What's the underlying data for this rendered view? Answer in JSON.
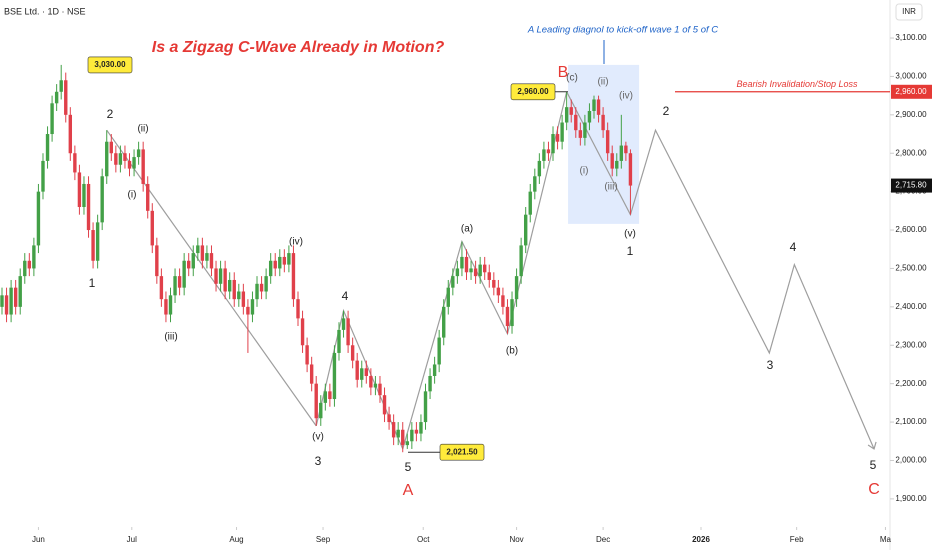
{
  "chart_data": {
    "type": "candlestick",
    "header": "BSE Ltd. · 1D · NSE",
    "currency": "INR",
    "title": "Is a Zigzag C-Wave Already in Motion?",
    "note": "A Leading diagnol to kick-off wave 1 of 5 of C",
    "up_color": "#43a047",
    "down_color": "#e0404a",
    "x": [
      0,
      1,
      2,
      3,
      4,
      5,
      6,
      7,
      8,
      9,
      10,
      11,
      12,
      13,
      14,
      15,
      16,
      17,
      18,
      19,
      20,
      21,
      22,
      23,
      24,
      25,
      26,
      27,
      28,
      29,
      30,
      31,
      32,
      33,
      34,
      35,
      36,
      37,
      38,
      39,
      40,
      41,
      42,
      43,
      44,
      45,
      46,
      47,
      48,
      49,
      50,
      51,
      52,
      53,
      54,
      55,
      56,
      57,
      58,
      59,
      60,
      61,
      62,
      63,
      64,
      65,
      66,
      67,
      68,
      69,
      70,
      71,
      72,
      73,
      74,
      75,
      76,
      77,
      78,
      79,
      80,
      81,
      82,
      83,
      84,
      85,
      86,
      87,
      88,
      89,
      90,
      91,
      92,
      93,
      94,
      95,
      96,
      97,
      98,
      99,
      100,
      101,
      102,
      103,
      104,
      105,
      106,
      107,
      108,
      109,
      110,
      111,
      112,
      113,
      114,
      115,
      116,
      117,
      118,
      119,
      120,
      121,
      122,
      123,
      124,
      125,
      126,
      127,
      128,
      129,
      130,
      131,
      132,
      133,
      134,
      135,
      136,
      137,
      138
    ],
    "open": [
      2400,
      2430,
      2380,
      2450,
      2400,
      2480,
      2520,
      2500,
      2560,
      2700,
      2780,
      2850,
      2930,
      2960,
      2990,
      2900,
      2800,
      2750,
      2660,
      2720,
      2600,
      2520,
      2620,
      2740,
      2830,
      2800,
      2770,
      2800,
      2780,
      2760,
      2790,
      2810,
      2720,
      2650,
      2560,
      2480,
      2420,
      2380,
      2430,
      2480,
      2450,
      2520,
      2500,
      2540,
      2560,
      2520,
      2540,
      2500,
      2460,
      2500,
      2440,
      2470,
      2420,
      2440,
      2400,
      2380,
      2420,
      2460,
      2440,
      2480,
      2520,
      2500,
      2530,
      2510,
      2540,
      2420,
      2370,
      2300,
      2250,
      2200,
      2110,
      2150,
      2180,
      2160,
      2280,
      2340,
      2370,
      2300,
      2260,
      2210,
      2240,
      2220,
      2190,
      2200,
      2170,
      2120,
      2100,
      2060,
      2080,
      2040,
      2050,
      2080,
      2070,
      2100,
      2180,
      2220,
      2250,
      2320,
      2400,
      2450,
      2480,
      2500,
      2530,
      2490,
      2500,
      2480,
      2510,
      2490,
      2470,
      2450,
      2430,
      2400,
      2350,
      2420,
      2480,
      2560,
      2640,
      2700,
      2740,
      2780,
      2810,
      2800,
      2850,
      2830,
      2880,
      2920,
      2900,
      2860,
      2840,
      2880,
      2910,
      2940,
      2900,
      2860,
      2800,
      2760,
      2780,
      2820,
      2800
    ],
    "high": [
      2450,
      2450,
      2470,
      2470,
      2500,
      2540,
      2540,
      2580,
      2720,
      2800,
      2870,
      2950,
      2980,
      3030,
      3010,
      2920,
      2820,
      2770,
      2740,
      2740,
      2620,
      2640,
      2760,
      2860,
      2850,
      2820,
      2820,
      2820,
      2800,
      2810,
      2830,
      2830,
      2740,
      2670,
      2580,
      2500,
      2440,
      2450,
      2500,
      2500,
      2540,
      2540,
      2560,
      2580,
      2580,
      2560,
      2560,
      2520,
      2520,
      2520,
      2490,
      2490,
      2460,
      2460,
      2420,
      2440,
      2480,
      2480,
      2500,
      2540,
      2540,
      2550,
      2550,
      2560,
      2560,
      2440,
      2390,
      2320,
      2270,
      2220,
      2170,
      2200,
      2200,
      2300,
      2360,
      2390,
      2390,
      2320,
      2280,
      2260,
      2260,
      2240,
      2220,
      2220,
      2190,
      2140,
      2120,
      2100,
      2100,
      2070,
      2100,
      2100,
      2120,
      2200,
      2240,
      2270,
      2340,
      2420,
      2470,
      2500,
      2520,
      2570,
      2550,
      2520,
      2520,
      2530,
      2530,
      2510,
      2490,
      2470,
      2450,
      2420,
      2440,
      2500,
      2580,
      2660,
      2720,
      2760,
      2800,
      2830,
      2830,
      2870,
      2870,
      2900,
      2960,
      2940,
      2920,
      2880,
      2900,
      2930,
      2950,
      2950,
      2920,
      2880,
      2820,
      2800,
      2900,
      2830,
      2810
    ],
    "low": [
      2380,
      2360,
      2360,
      2380,
      2380,
      2460,
      2480,
      2480,
      2540,
      2680,
      2760,
      2830,
      2910,
      2940,
      2880,
      2780,
      2730,
      2640,
      2640,
      2580,
      2500,
      2500,
      2600,
      2720,
      2780,
      2750,
      2750,
      2760,
      2740,
      2740,
      2770,
      2700,
      2630,
      2540,
      2460,
      2400,
      2360,
      2360,
      2410,
      2430,
      2430,
      2480,
      2480,
      2520,
      2500,
      2500,
      2480,
      2440,
      2440,
      2420,
      2420,
      2400,
      2400,
      2380,
      2280,
      2360,
      2400,
      2420,
      2420,
      2460,
      2480,
      2480,
      2490,
      2490,
      2400,
      2350,
      2280,
      2230,
      2180,
      2090,
      2090,
      2130,
      2140,
      2140,
      2260,
      2320,
      2280,
      2240,
      2190,
      2190,
      2200,
      2170,
      2170,
      2150,
      2100,
      2080,
      2040,
      2040,
      2021.5,
      2030,
      2030,
      2050,
      2050,
      2080,
      2160,
      2200,
      2230,
      2300,
      2380,
      2430,
      2460,
      2480,
      2470,
      2470,
      2460,
      2460,
      2470,
      2450,
      2430,
      2410,
      2380,
      2330,
      2330,
      2400,
      2460,
      2540,
      2620,
      2680,
      2720,
      2760,
      2780,
      2780,
      2810,
      2810,
      2860,
      2880,
      2840,
      2820,
      2820,
      2860,
      2890,
      2880,
      2840,
      2780,
      2740,
      2740,
      2760,
      2780,
      2640
    ],
    "close": [
      2430,
      2380,
      2450,
      2400,
      2480,
      2520,
      2500,
      2560,
      2700,
      2780,
      2850,
      2930,
      2960,
      2990,
      2900,
      2800,
      2750,
      2660,
      2720,
      2600,
      2520,
      2620,
      2740,
      2830,
      2800,
      2770,
      2800,
      2780,
      2760,
      2790,
      2810,
      2720,
      2650,
      2560,
      2480,
      2420,
      2380,
      2430,
      2480,
      2450,
      2520,
      2500,
      2540,
      2560,
      2520,
      2540,
      2500,
      2460,
      2500,
      2440,
      2470,
      2420,
      2440,
      2400,
      2380,
      2420,
      2460,
      2440,
      2480,
      2520,
      2500,
      2530,
      2510,
      2540,
      2420,
      2370,
      2300,
      2250,
      2200,
      2110,
      2150,
      2180,
      2160,
      2280,
      2340,
      2370,
      2300,
      2260,
      2210,
      2240,
      2220,
      2190,
      2200,
      2170,
      2120,
      2100,
      2060,
      2080,
      2040,
      2050,
      2080,
      2070,
      2100,
      2180,
      2220,
      2250,
      2320,
      2400,
      2450,
      2480,
      2500,
      2530,
      2490,
      2500,
      2480,
      2510,
      2490,
      2470,
      2450,
      2430,
      2400,
      2350,
      2420,
      2480,
      2560,
      2640,
      2700,
      2740,
      2780,
      2810,
      2800,
      2850,
      2830,
      2880,
      2920,
      2900,
      2860,
      2840,
      2880,
      2910,
      2940,
      2900,
      2860,
      2800,
      2760,
      2780,
      2820,
      2800,
      2715.8
    ],
    "xlim": [
      0,
      195
    ],
    "xticks": [
      {
        "value": 8,
        "label": "Jun"
      },
      {
        "value": 28.5,
        "label": "Jul"
      },
      {
        "value": 51.5,
        "label": "Aug"
      },
      {
        "value": 70.5,
        "label": "Sep"
      },
      {
        "value": 92.5,
        "label": "Oct"
      },
      {
        "value": 113,
        "label": "Nov"
      },
      {
        "value": 132,
        "label": "Dec"
      },
      {
        "value": 153.5,
        "label": "2026"
      },
      {
        "value": 174.5,
        "label": "Feb"
      },
      {
        "value": 194,
        "label": "Ma"
      }
    ],
    "ylim": [
      1845,
      3199
    ],
    "yticks": [
      {
        "value": 1900,
        "label": "1,900.00"
      },
      {
        "value": 2000,
        "label": "2,000.00"
      },
      {
        "value": 2100,
        "label": "2,100.00"
      },
      {
        "value": 2200,
        "label": "2,200.00"
      },
      {
        "value": 2300,
        "label": "2,300.00"
      },
      {
        "value": 2400,
        "label": "2,400.00"
      },
      {
        "value": 2500,
        "label": "2,500.00"
      },
      {
        "value": 2600,
        "label": "2,600.00"
      },
      {
        "value": 2700,
        "label": "2,700.00"
      },
      {
        "value": 2800,
        "label": "2,800.00"
      },
      {
        "value": 2900,
        "label": "2,900.00"
      },
      {
        "value": 3000,
        "label": "3,000.00"
      },
      {
        "value": 3100,
        "label": "3,100.00"
      }
    ],
    "callouts": [
      {
        "value": 3030,
        "label": "3,030.00"
      },
      {
        "value": 2960,
        "label": "2,960.00"
      },
      {
        "value": 2021.5,
        "label": "2,021.50"
      }
    ],
    "last_price": {
      "value": 2715.8,
      "label": "2,715.80"
    },
    "stop_loss": {
      "value": 2960,
      "label": "2,960.00",
      "text": "Bearish Invalidation/Stop Loss"
    },
    "highlight_box": {
      "x": [
        124.3,
        139.9
      ],
      "y": [
        2616,
        3030
      ]
    },
    "wave_lines": [
      {
        "x": [
          23,
          69
        ],
        "y": [
          2860,
          2090
        ]
      },
      {
        "x": [
          69,
          75,
          88
        ],
        "y": [
          2090,
          2390,
          2030
        ]
      },
      {
        "x": [
          88,
          101,
          111,
          124
        ],
        "y": [
          2030,
          2570,
          2330,
          2960
        ]
      },
      {
        "x": [
          124,
          138,
          143.5,
          168.5,
          174,
          191.5
        ],
        "y": [
          2960,
          2640,
          2860,
          2280,
          2510,
          2030
        ]
      }
    ],
    "wave_labels": [
      {
        "text": "1",
        "color": "#222"
      },
      {
        "text": "2",
        "color": "#222"
      },
      {
        "text": "(ii)",
        "color": "#222"
      },
      {
        "text": "(i)",
        "color": "#222"
      },
      {
        "text": "(iii)",
        "color": "#222"
      },
      {
        "text": "(iv)",
        "color": "#222"
      },
      {
        "text": "(v)",
        "color": "#222"
      },
      {
        "text": "3",
        "color": "#222"
      },
      {
        "text": "4",
        "color": "#222"
      },
      {
        "text": "5",
        "color": "#222"
      },
      {
        "text": "A",
        "color": "#e53935"
      },
      {
        "text": "(a)",
        "color": "#222"
      },
      {
        "text": "(b)",
        "color": "#222"
      },
      {
        "text": "B",
        "color": "#e53935"
      },
      {
        "text": "(c)",
        "color": "#555"
      },
      {
        "text": "(ii)",
        "color": "#666"
      },
      {
        "text": "(iv)",
        "color": "#666"
      },
      {
        "text": "(i)",
        "color": "#666"
      },
      {
        "text": "(iii)",
        "color": "#666"
      },
      {
        "text": "(v)",
        "color": "#222"
      },
      {
        "text": "1",
        "color": "#222"
      },
      {
        "text": "2",
        "color": "#222"
      },
      {
        "text": "3",
        "color": "#222"
      },
      {
        "text": "4",
        "color": "#222"
      },
      {
        "text": "5",
        "color": "#222"
      },
      {
        "text": "C",
        "color": "#e53935"
      }
    ]
  }
}
